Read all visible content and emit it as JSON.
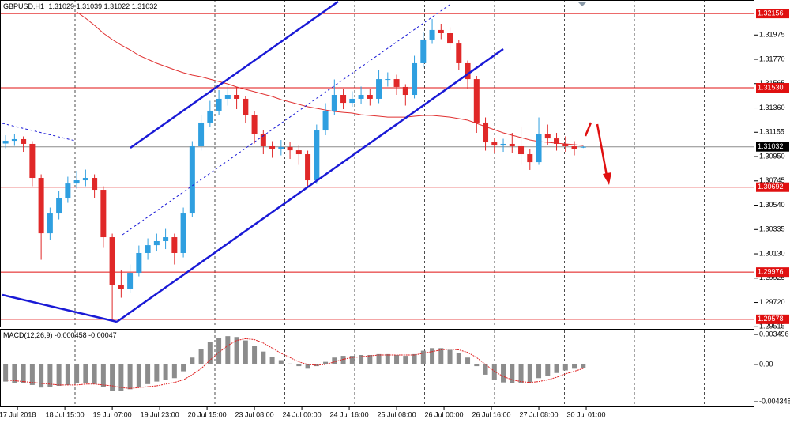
{
  "chart_data": [
    {
      "type": "candlestick",
      "title": "GBPUSD,H1",
      "x": [
        0,
        3,
        6,
        9,
        12,
        15,
        18,
        21,
        24,
        27,
        30,
        33,
        36,
        39,
        42,
        45,
        48,
        51,
        54,
        57,
        60,
        63,
        66,
        69,
        72,
        75,
        78,
        81,
        84,
        87,
        90,
        93,
        96,
        99,
        102,
        105,
        108,
        111,
        114,
        117,
        120,
        123,
        126,
        129,
        132,
        135,
        138,
        141,
        144,
        147,
        150,
        153,
        156,
        159,
        162,
        165,
        168,
        171,
        174,
        177,
        180,
        183,
        186,
        189,
        192,
        195
      ],
      "open": [
        1.3106,
        1.31083,
        1.31097,
        1.31057,
        1.3077,
        1.30303,
        1.3047,
        1.30603,
        1.30723,
        1.3075,
        1.3077,
        1.3067,
        1.3027,
        1.2987,
        1.29837,
        1.2997,
        1.30137,
        1.30203,
        1.30237,
        1.3027,
        1.30137,
        1.3047,
        1.31037,
        1.31237,
        1.31337,
        1.31437,
        1.3147,
        1.31437,
        1.31303,
        1.31137,
        1.31037,
        1.31017,
        1.3103,
        1.31003,
        1.3097,
        1.3075,
        1.3117,
        1.31337,
        1.3147,
        1.31403,
        1.31437,
        1.3147,
        1.31437,
        1.31603,
        1.31603,
        1.31537,
        1.3147,
        1.31737,
        1.31937,
        1.32017,
        1.3199,
        1.31903,
        1.31737,
        1.31603,
        1.31237,
        1.3107,
        1.31043,
        1.31057,
        1.31037,
        1.3097,
        1.30903,
        1.31137,
        1.31103,
        1.31057,
        1.31037,
        1.31029
      ],
      "high": [
        1.3113,
        1.3114,
        1.3112,
        1.3108,
        1.308,
        1.3052,
        1.3066,
        1.3078,
        1.3083,
        1.3084,
        1.308,
        1.307,
        1.303,
        1.2999,
        1.3004,
        1.302,
        1.3026,
        1.303,
        1.3034,
        1.303,
        1.3052,
        1.3108,
        1.313,
        1.3142,
        1.3151,
        1.3154,
        1.3153,
        1.3146,
        1.3133,
        1.3117,
        1.3108,
        1.3109,
        1.3107,
        1.3105,
        1.31,
        1.3122,
        1.314,
        1.316,
        1.3152,
        1.315,
        1.3154,
        1.3152,
        1.3168,
        1.3166,
        1.3164,
        1.3156,
        1.318,
        1.32,
        1.3211,
        1.3207,
        1.3204,
        1.3193,
        1.3176,
        1.3163,
        1.3128,
        1.3111,
        1.311,
        1.3115,
        1.312,
        1.3101,
        1.3128,
        1.3122,
        1.3115,
        1.3112,
        1.3108,
        1.31039
      ],
      "low": [
        1.3102,
        1.3104,
        1.3099,
        1.307,
        1.3008,
        1.3025,
        1.3042,
        1.3056,
        1.3068,
        1.307,
        1.306,
        1.3018,
        1.29578,
        1.2976,
        1.298,
        1.2994,
        1.3008,
        1.3015,
        1.3017,
        1.3004,
        1.301,
        1.3044,
        1.31,
        1.312,
        1.313,
        1.3138,
        1.3135,
        1.3123,
        1.3106,
        1.3097,
        1.3094,
        1.3096,
        1.3093,
        1.3088,
        1.30692,
        1.3072,
        1.3113,
        1.313,
        1.3135,
        1.3137,
        1.3139,
        1.3138,
        1.314,
        1.3154,
        1.3147,
        1.3138,
        1.3144,
        1.317,
        1.319,
        1.3194,
        1.3185,
        1.3168,
        1.3152,
        1.3115,
        1.31,
        1.3098,
        1.3099,
        1.3098,
        1.3088,
        1.30837,
        1.3088,
        1.3105,
        1.31,
        1.3099,
        1.3096,
        1.31022
      ],
      "close": [
        1.31083,
        1.31097,
        1.31057,
        1.3077,
        1.30303,
        1.3047,
        1.30603,
        1.30723,
        1.3075,
        1.3077,
        1.3067,
        1.3027,
        1.2987,
        1.29837,
        1.2997,
        1.30137,
        1.30203,
        1.30237,
        1.3027,
        1.30137,
        1.3047,
        1.31037,
        1.31237,
        1.31337,
        1.31437,
        1.3147,
        1.31437,
        1.31303,
        1.31137,
        1.31037,
        1.31017,
        1.3103,
        1.31003,
        1.3097,
        1.3075,
        1.3117,
        1.31337,
        1.3147,
        1.31403,
        1.31437,
        1.3147,
        1.31437,
        1.31603,
        1.31603,
        1.31537,
        1.3147,
        1.31737,
        1.31937,
        1.32017,
        1.3199,
        1.31903,
        1.31737,
        1.31603,
        1.31237,
        1.3107,
        1.31043,
        1.31057,
        1.31037,
        1.3097,
        1.30903,
        1.31137,
        1.31103,
        1.31057,
        1.31037,
        1.31017,
        1.31032
      ],
      "up_color": "#2f9fe0",
      "down_color": "#e02828",
      "ma": {
        "color": "#e03030",
        "values": [
          null,
          null,
          null,
          null,
          null,
          null,
          null,
          null,
          1.3217,
          1.32117,
          1.32057,
          1.3199,
          1.31937,
          1.3189,
          1.3185,
          1.31803,
          1.3177,
          1.31737,
          1.3171,
          1.31683,
          1.31657,
          1.31637,
          1.31623,
          1.31603,
          1.31583,
          1.31563,
          1.31537,
          1.31517,
          1.31497,
          1.31477,
          1.31457,
          1.3143,
          1.3141,
          1.3139,
          1.3137,
          1.31357,
          1.31343,
          1.3133,
          1.31323,
          1.31317,
          1.31303,
          1.31297,
          1.3129,
          1.31283,
          1.31283,
          1.31283,
          1.3129,
          1.31297,
          1.31297,
          1.3129,
          1.31283,
          1.3127,
          1.31257,
          1.3123,
          1.31203,
          1.31177,
          1.3115,
          1.3113,
          1.3111,
          1.3109,
          1.31077,
          1.3107,
          1.31063,
          1.31057,
          1.3105,
          1.31043
        ]
      },
      "xlim": [
        -1.9,
        252.8
      ],
      "xticks": [
        {
          "value": 4,
          "label": "17 Jul 2018"
        },
        {
          "value": 20,
          "label": "18 Jul 15:00"
        },
        {
          "value": 36,
          "label": "19 Jul 07:00"
        },
        {
          "value": 52,
          "label": "19 Jul 23:00"
        },
        {
          "value": 68,
          "label": "20 Jul 15:00"
        },
        {
          "value": 84,
          "label": "23 Jul 08:00"
        },
        {
          "value": 100,
          "label": "24 Jul 00:00"
        },
        {
          "value": 116,
          "label": "24 Jul 16:00"
        },
        {
          "value": 132,
          "label": "25 Jul 08:00"
        },
        {
          "value": 148,
          "label": "26 Jul 00:00"
        },
        {
          "value": 164,
          "label": "26 Jul 16:00"
        },
        {
          "value": 180,
          "label": "27 Jul 08:00"
        },
        {
          "value": 196,
          "label": "30 Jul 01:00"
        }
      ],
      "ylim": [
        1.29517,
        1.3227
      ],
      "yticks": [
        1.31975,
        {
          "value": 1.3177,
          "label": "1.31770"
        },
        1.31565,
        {
          "value": 1.3136,
          "label": "1.31360"
        },
        1.31155,
        {
          "value": 1.3095,
          "label": "1.30950"
        },
        1.30745,
        {
          "value": 1.3054,
          "label": "1.30540"
        },
        1.30335,
        {
          "value": 1.3013,
          "label": "1.30130"
        },
        1.29925,
        {
          "value": 1.2972,
          "label": "1.29720"
        },
        1.29515
      ],
      "levels": [
        1.32156,
        {
          "value": 1.3153,
          "label": "1.31530"
        },
        1.30692,
        1.29976,
        1.29578
      ],
      "level_color": "#e01010",
      "current_price": 1.31032
    },
    {
      "type": "macd",
      "title": "MACD(12,26,9)",
      "main_value": -0.000458,
      "signal_value": -0.00047,
      "histogram": [
        -0.002,
        -0.0022,
        -0.0022,
        -0.0024,
        -0.0027,
        -0.0026,
        -0.0025,
        -0.0024,
        -0.0022,
        -0.0022,
        -0.0023,
        -0.0026,
        -0.0031,
        -0.0031,
        -0.0029,
        -0.0026,
        -0.0023,
        -0.002,
        -0.0018,
        -0.0016,
        -0.0008,
        0.0008,
        0.0018,
        0.0026,
        0.0031,
        0.0033,
        0.0032,
        0.0028,
        0.0022,
        0.0015,
        0.0009,
        0.0005,
        0.0001,
        -0.0002,
        -0.0005,
        -0.0002,
        0.0003,
        0.0008,
        0.001,
        0.001,
        0.0011,
        0.0011,
        0.0012,
        0.0012,
        0.0011,
        0.001,
        0.0012,
        0.0016,
        0.0019,
        0.0019,
        0.0017,
        0.0013,
        0.0008,
        -0.0002,
        -0.0012,
        -0.0018,
        -0.0021,
        -0.0022,
        -0.0022,
        -0.0021,
        -0.0016,
        -0.0013,
        -0.001,
        -0.0007,
        -0.0005,
        -0.000458
      ],
      "signal": [
        -0.0018,
        -0.0019,
        -0.002,
        -0.0021,
        -0.0022,
        -0.0023,
        -0.0024,
        -0.0024,
        -0.0024,
        -0.0023,
        -0.0023,
        -0.0024,
        -0.0025,
        -0.0027,
        -0.0028,
        -0.0027,
        -0.0026,
        -0.0025,
        -0.0023,
        -0.0021,
        -0.0018,
        -0.0012,
        -0.0005,
        0.0005,
        0.0014,
        0.0022,
        0.0028,
        0.003,
        0.0029,
        0.0025,
        0.0019,
        0.0013,
        0.0008,
        0.0003,
        0.0,
        -0.0001,
        0.0,
        0.0003,
        0.0006,
        0.0008,
        0.0009,
        0.001,
        0.0011,
        0.0011,
        0.0011,
        0.0011,
        0.0011,
        0.0013,
        0.0015,
        0.0017,
        0.0018,
        0.0017,
        0.0014,
        0.0008,
        0.0,
        -0.0008,
        -0.0014,
        -0.0018,
        -0.002,
        -0.0021,
        -0.002,
        -0.0018,
        -0.0015,
        -0.0011,
        -0.0008,
        -0.00047
      ],
      "histogram_color": "#8c8c8c",
      "signal_color": "#e02020",
      "ylim": [
        -0.00499,
        0.00396
      ],
      "yticks": [
        0.003496,
        {
          "value": 0,
          "label": "0.00"
        },
        -0.004348
      ]
    }
  ]
}
